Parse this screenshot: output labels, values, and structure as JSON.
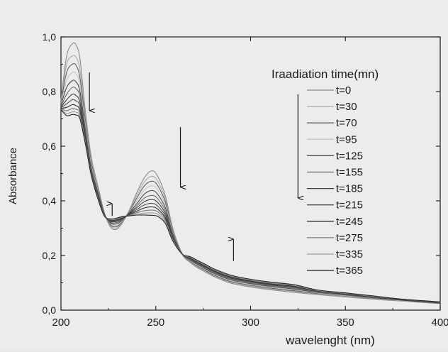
{
  "chart_data": {
    "type": "line",
    "xlabel": "wavelenght (nm)",
    "ylabel": "Absorbance",
    "xlim": [
      200,
      400
    ],
    "ylim": [
      0,
      1
    ],
    "x_ticks": [
      200,
      250,
      300,
      350,
      400
    ],
    "x_tick_labels": [
      "200",
      "250",
      "300",
      "350",
      "400"
    ],
    "y_ticks": [
      0,
      0.2,
      0.4,
      0.6,
      0.8,
      1.0
    ],
    "y_tick_labels": [
      "0,0",
      "0,2",
      "0,4",
      "0,6",
      "0,8",
      "1,0"
    ],
    "grid": false,
    "legend_title": "Iraadiation time(mn)",
    "legend_position": "top-right",
    "x": [
      200,
      203,
      206,
      208,
      210,
      213,
      216,
      220,
      223,
      226,
      229,
      232,
      236,
      240,
      244,
      248,
      251,
      255,
      259,
      264,
      268,
      272,
      276,
      280,
      285,
      290,
      300,
      310,
      323,
      335,
      350,
      365,
      380,
      400
    ],
    "series": [
      {
        "name": "t=0",
        "color": "#8a8a8a",
        "values": [
          0.77,
          0.93,
          0.975,
          0.97,
          0.92,
          0.72,
          0.56,
          0.44,
          0.355,
          0.305,
          0.295,
          0.315,
          0.365,
          0.43,
          0.485,
          0.51,
          0.49,
          0.42,
          0.3,
          0.205,
          0.175,
          0.155,
          0.14,
          0.125,
          0.11,
          0.098,
          0.085,
          0.075,
          0.065,
          0.057,
          0.048,
          0.04,
          0.033,
          0.024
        ]
      },
      {
        "name": "t=30",
        "color": "#a8a8a8",
        "values": [
          0.765,
          0.9,
          0.93,
          0.925,
          0.88,
          0.7,
          0.55,
          0.435,
          0.353,
          0.31,
          0.3,
          0.318,
          0.363,
          0.42,
          0.47,
          0.49,
          0.472,
          0.408,
          0.295,
          0.205,
          0.178,
          0.158,
          0.143,
          0.128,
          0.113,
          0.101,
          0.088,
          0.078,
          0.068,
          0.059,
          0.05,
          0.042,
          0.034,
          0.025
        ]
      },
      {
        "name": "t=70",
        "color": "#5e5e5e",
        "values": [
          0.76,
          0.87,
          0.9,
          0.895,
          0.85,
          0.685,
          0.54,
          0.43,
          0.352,
          0.313,
          0.305,
          0.321,
          0.361,
          0.41,
          0.455,
          0.472,
          0.456,
          0.397,
          0.29,
          0.205,
          0.18,
          0.161,
          0.146,
          0.131,
          0.116,
          0.104,
          0.091,
          0.081,
          0.071,
          0.061,
          0.052,
          0.043,
          0.035,
          0.025
        ]
      },
      {
        "name": "t=95",
        "color": "#c2c2c2",
        "values": [
          0.755,
          0.84,
          0.87,
          0.865,
          0.825,
          0.67,
          0.53,
          0.425,
          0.351,
          0.316,
          0.31,
          0.324,
          0.359,
          0.4,
          0.44,
          0.455,
          0.44,
          0.386,
          0.285,
          0.205,
          0.182,
          0.164,
          0.149,
          0.134,
          0.119,
          0.107,
          0.094,
          0.084,
          0.074,
          0.063,
          0.053,
          0.044,
          0.035,
          0.026
        ]
      },
      {
        "name": "t=125",
        "color": "#484848",
        "values": [
          0.75,
          0.815,
          0.84,
          0.835,
          0.8,
          0.655,
          0.52,
          0.42,
          0.35,
          0.319,
          0.315,
          0.327,
          0.357,
          0.39,
          0.425,
          0.438,
          0.424,
          0.375,
          0.28,
          0.205,
          0.184,
          0.167,
          0.152,
          0.137,
          0.122,
          0.11,
          0.097,
          0.087,
          0.077,
          0.065,
          0.055,
          0.045,
          0.036,
          0.026
        ]
      },
      {
        "name": "t=155",
        "color": "#6c6c6c",
        "values": [
          0.745,
          0.79,
          0.815,
          0.81,
          0.78,
          0.645,
          0.515,
          0.415,
          0.349,
          0.322,
          0.32,
          0.33,
          0.355,
          0.382,
          0.41,
          0.42,
          0.408,
          0.364,
          0.275,
          0.205,
          0.186,
          0.17,
          0.155,
          0.14,
          0.125,
          0.113,
          0.1,
          0.09,
          0.08,
          0.067,
          0.056,
          0.046,
          0.037,
          0.027
        ]
      },
      {
        "name": "t=185",
        "color": "#3c3c3c",
        "values": [
          0.742,
          0.77,
          0.79,
          0.785,
          0.76,
          0.635,
          0.51,
          0.41,
          0.348,
          0.325,
          0.324,
          0.333,
          0.353,
          0.375,
          0.397,
          0.405,
          0.394,
          0.354,
          0.27,
          0.205,
          0.188,
          0.172,
          0.158,
          0.143,
          0.128,
          0.116,
          0.103,
          0.093,
          0.083,
          0.069,
          0.058,
          0.047,
          0.037,
          0.027
        ]
      },
      {
        "name": "t=215",
        "color": "#505050",
        "values": [
          0.74,
          0.755,
          0.77,
          0.765,
          0.745,
          0.625,
          0.505,
          0.406,
          0.347,
          0.327,
          0.327,
          0.335,
          0.351,
          0.368,
          0.385,
          0.391,
          0.381,
          0.345,
          0.266,
          0.205,
          0.19,
          0.174,
          0.16,
          0.145,
          0.131,
          0.119,
          0.105,
          0.095,
          0.085,
          0.07,
          0.059,
          0.048,
          0.038,
          0.028
        ]
      },
      {
        "name": "t=245",
        "color": "#2e2e2e",
        "values": [
          0.738,
          0.742,
          0.752,
          0.748,
          0.73,
          0.618,
          0.5,
          0.403,
          0.346,
          0.329,
          0.33,
          0.337,
          0.349,
          0.362,
          0.374,
          0.378,
          0.37,
          0.337,
          0.262,
          0.205,
          0.192,
          0.176,
          0.162,
          0.147,
          0.133,
          0.121,
          0.107,
          0.097,
          0.087,
          0.071,
          0.06,
          0.049,
          0.038,
          0.028
        ]
      },
      {
        "name": "t=275",
        "color": "#777777",
        "values": [
          0.736,
          0.73,
          0.738,
          0.735,
          0.718,
          0.612,
          0.497,
          0.4,
          0.345,
          0.331,
          0.332,
          0.339,
          0.347,
          0.357,
          0.364,
          0.366,
          0.36,
          0.33,
          0.259,
          0.205,
          0.193,
          0.178,
          0.164,
          0.149,
          0.135,
          0.123,
          0.109,
          0.099,
          0.089,
          0.072,
          0.061,
          0.05,
          0.039,
          0.029
        ]
      },
      {
        "name": "t=335",
        "color": "#9a9a9a",
        "values": [
          0.735,
          0.72,
          0.726,
          0.724,
          0.708,
          0.607,
          0.494,
          0.398,
          0.344,
          0.333,
          0.334,
          0.341,
          0.346,
          0.352,
          0.355,
          0.356,
          0.351,
          0.324,
          0.256,
          0.205,
          0.195,
          0.18,
          0.166,
          0.151,
          0.137,
          0.125,
          0.111,
          0.101,
          0.091,
          0.073,
          0.062,
          0.051,
          0.04,
          0.029
        ]
      },
      {
        "name": "t=365",
        "color": "#222222",
        "values": [
          0.734,
          0.712,
          0.716,
          0.714,
          0.7,
          0.603,
          0.492,
          0.396,
          0.343,
          0.334,
          0.336,
          0.342,
          0.345,
          0.348,
          0.348,
          0.347,
          0.343,
          0.318,
          0.253,
          0.205,
          0.196,
          0.182,
          0.168,
          0.153,
          0.139,
          0.127,
          0.113,
          0.103,
          0.093,
          0.074,
          0.063,
          0.052,
          0.04,
          0.03
        ]
      }
    ],
    "arrows": [
      {
        "direction": "down",
        "x": 215,
        "y_from": 0.87,
        "y_to": 0.73
      },
      {
        "direction": "up",
        "x": 227,
        "y_from": 0.345,
        "y_to": 0.39
      },
      {
        "direction": "down",
        "x": 263,
        "y_from": 0.67,
        "y_to": 0.45
      },
      {
        "direction": "up",
        "x": 291,
        "y_from": 0.18,
        "y_to": 0.26
      },
      {
        "direction": "down",
        "x": 325,
        "y_from": 0.79,
        "y_to": 0.41
      }
    ]
  }
}
